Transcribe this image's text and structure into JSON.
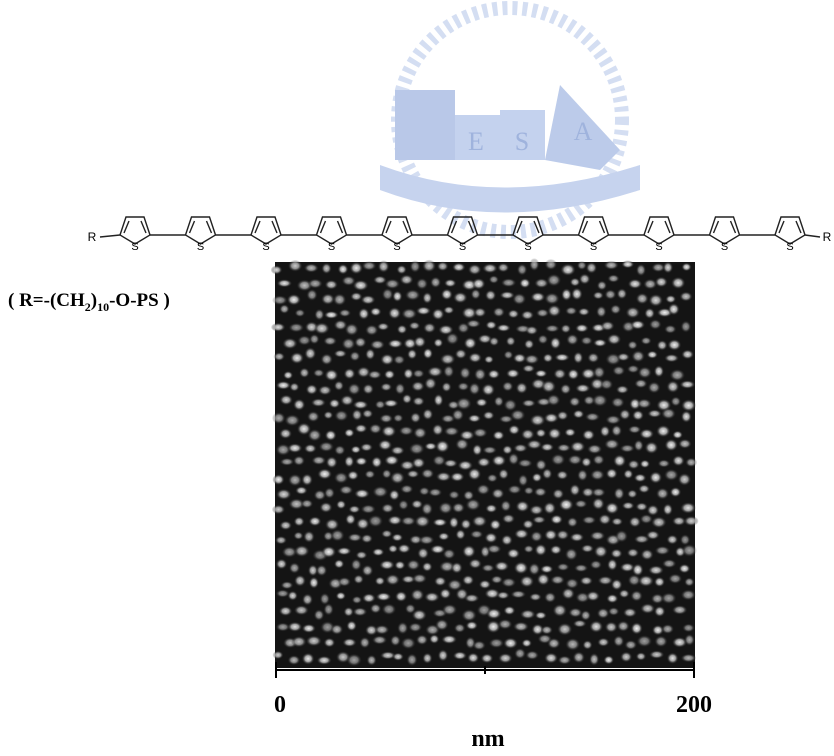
{
  "watermark": {
    "letters": [
      "E",
      "S",
      "A"
    ]
  },
  "structure": {
    "end_groups": [
      "R",
      "R"
    ],
    "ring_atoms": [
      "S",
      "S",
      "S",
      "S",
      "S",
      "S",
      "S",
      "S",
      "S",
      "S",
      "S"
    ]
  },
  "formula": {
    "open": "( R=-(CH",
    "sub1": "2",
    "mid": ")",
    "sub2": "10",
    "close": "-O-PS )"
  },
  "scale_bar": {
    "start": "0",
    "end": "200",
    "unit": "nm"
  }
}
